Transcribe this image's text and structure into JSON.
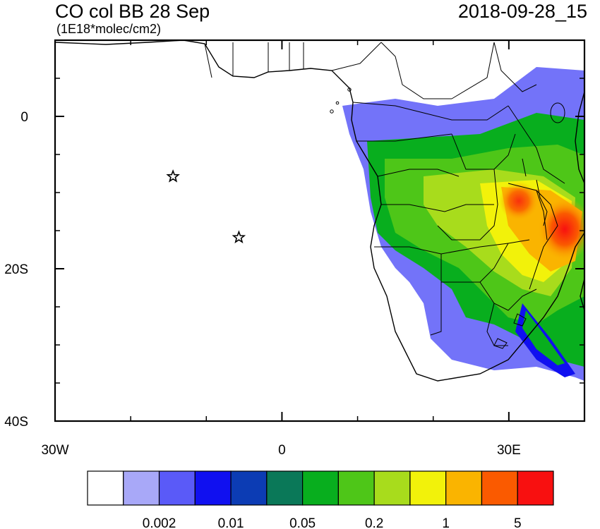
{
  "header": {
    "title": "CO col BB 28 Sep",
    "units": "(1E18*molec/cm2)",
    "datetime": "2018-09-28_15"
  },
  "axes": {
    "x_ticks": [
      {
        "lon": -30,
        "label": "30W"
      },
      {
        "lon": 0,
        "label": "0"
      },
      {
        "lon": 30,
        "label": "30E"
      }
    ],
    "y_ticks": [
      {
        "lat": 0,
        "label": "0"
      },
      {
        "lat": -20,
        "label": "20S"
      },
      {
        "lat": -40,
        "label": "40S"
      }
    ],
    "x_minor_lons": [
      -20,
      -10,
      10,
      20,
      40
    ],
    "y_minor_lats": [
      5,
      -5,
      -10,
      -15,
      -25,
      -30,
      -35
    ],
    "lon_range": [
      -30,
      40
    ],
    "lat_range": [
      -40,
      10
    ]
  },
  "markers": [
    {
      "type": "star",
      "lon": -14.4,
      "lat": -7.9
    },
    {
      "type": "star",
      "lon": -5.7,
      "lat": -15.9
    }
  ],
  "colorbar": {
    "colors": [
      "#ffffff",
      "#a8a8f8",
      "#5a5af8",
      "#1010f0",
      "#0c3cb4",
      "#0a7858",
      "#08ae1e",
      "#4ec618",
      "#a8dc1c",
      "#f2f20a",
      "#fab400",
      "#fa5a00",
      "#f81010"
    ],
    "labels": [
      "0.002",
      "0.01",
      "0.05",
      "0.2",
      "1",
      "5"
    ]
  }
}
